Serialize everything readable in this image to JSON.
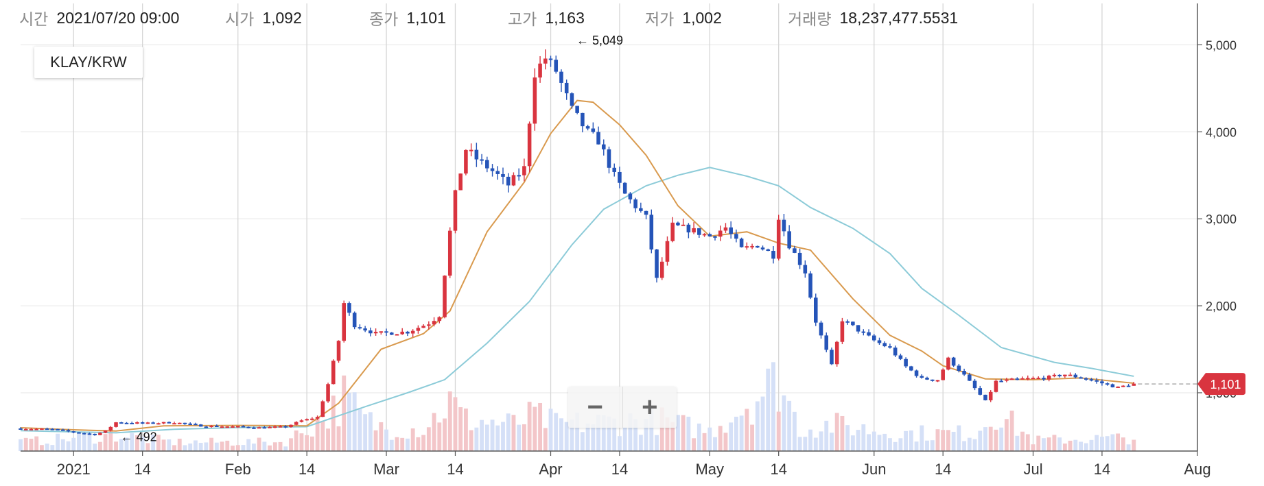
{
  "info": {
    "time_label": "시간",
    "time_value": "2021/07/20 09:00",
    "open_label": "시가",
    "open_value": "1,092",
    "close_label": "종가",
    "close_value": "1,101",
    "high_label": "고가",
    "high_value": "1,163",
    "low_label": "저가",
    "low_value": "1,002",
    "volume_label": "거래량",
    "volume_value": "18,237,477.5531"
  },
  "symbol": "KLAY/KRW",
  "zoom": {
    "out_label": "−",
    "in_label": "+"
  },
  "colors": {
    "up": "#d9343f",
    "down": "#2554b8",
    "ma_short": "#d99a4e",
    "ma_long": "#8ccbd8",
    "up_volume": "#f3c6c9",
    "down_volume": "#d5e0f7",
    "grid": "#e6e6e6"
  },
  "chart_data": {
    "type": "candlestick",
    "y_axis": {
      "ticks": [
        1000,
        2000,
        3000,
        4000,
        5000
      ],
      "tick_labels": [
        "1,000",
        "2,000",
        "3,000",
        "4,000",
        "5,000"
      ],
      "range": [
        330,
        5200
      ],
      "position": "right"
    },
    "x_axis": {
      "ticks": [
        {
          "date": "2021-01-01",
          "label": "2021"
        },
        {
          "date": "2021-01-14",
          "label": "14"
        },
        {
          "date": "2021-02-01",
          "label": "Feb"
        },
        {
          "date": "2021-02-14",
          "label": "14"
        },
        {
          "date": "2021-03-01",
          "label": "Mar"
        },
        {
          "date": "2021-03-14",
          "label": "14"
        },
        {
          "date": "2021-04-01",
          "label": "Apr"
        },
        {
          "date": "2021-04-14",
          "label": "14"
        },
        {
          "date": "2021-05-01",
          "label": "May"
        },
        {
          "date": "2021-05-14",
          "label": "14"
        },
        {
          "date": "2021-06-01",
          "label": "Jun"
        },
        {
          "date": "2021-06-14",
          "label": "14"
        },
        {
          "date": "2021-07-01",
          "label": "Jul"
        },
        {
          "date": "2021-07-14",
          "label": "14"
        },
        {
          "date": "2021-08-01",
          "label": "Aug"
        }
      ],
      "range": [
        "2020-12-22",
        "2021-08-01"
      ]
    },
    "close_anchors": [
      [
        "2020-12-22",
        590
      ],
      [
        "2020-12-28",
        580
      ],
      [
        "2021-01-02",
        540
      ],
      [
        "2021-01-05",
        520
      ],
      [
        "2021-01-07",
        560
      ],
      [
        "2021-01-09",
        660
      ],
      [
        "2021-01-15",
        650
      ],
      [
        "2021-01-20",
        660
      ],
      [
        "2021-01-25",
        620
      ],
      [
        "2021-02-01",
        610
      ],
      [
        "2021-02-05",
        600
      ],
      [
        "2021-02-10",
        610
      ],
      [
        "2021-02-13",
        680
      ],
      [
        "2021-02-16",
        720
      ],
      [
        "2021-02-18",
        1100
      ],
      [
        "2021-02-20",
        1600
      ],
      [
        "2021-02-21",
        2030
      ],
      [
        "2021-02-23",
        1780
      ],
      [
        "2021-02-27",
        1680
      ],
      [
        "2021-03-05",
        1700
      ],
      [
        "2021-03-09",
        1800
      ],
      [
        "2021-03-11",
        1890
      ],
      [
        "2021-03-13",
        2850
      ],
      [
        "2021-03-14",
        3280
      ],
      [
        "2021-03-16",
        3800
      ],
      [
        "2021-03-18",
        3690
      ],
      [
        "2021-03-21",
        3550
      ],
      [
        "2021-03-24",
        3390
      ],
      [
        "2021-03-27",
        3580
      ],
      [
        "2021-03-29",
        4680
      ],
      [
        "2021-03-31",
        4850
      ],
      [
        "2021-04-02",
        4700
      ],
      [
        "2021-04-05",
        4250
      ],
      [
        "2021-04-08",
        3990
      ],
      [
        "2021-04-10",
        3900
      ],
      [
        "2021-04-13",
        3490
      ],
      [
        "2021-04-15",
        3280
      ],
      [
        "2021-04-19",
        3010
      ],
      [
        "2021-04-21",
        2300
      ],
      [
        "2021-04-24",
        2920
      ],
      [
        "2021-04-27",
        2880
      ],
      [
        "2021-05-01",
        2800
      ],
      [
        "2021-05-04",
        2900
      ],
      [
        "2021-05-07",
        2650
      ],
      [
        "2021-05-10",
        2700
      ],
      [
        "2021-05-13",
        2580
      ],
      [
        "2021-05-14",
        3030
      ],
      [
        "2021-05-16",
        2700
      ],
      [
        "2021-05-19",
        2390
      ],
      [
        "2021-05-21",
        1820
      ],
      [
        "2021-05-24",
        1310
      ],
      [
        "2021-05-26",
        1840
      ],
      [
        "2021-05-28",
        1760
      ],
      [
        "2021-06-01",
        1600
      ],
      [
        "2021-06-04",
        1510
      ],
      [
        "2021-06-07",
        1300
      ],
      [
        "2021-06-10",
        1160
      ],
      [
        "2021-06-13",
        1150
      ],
      [
        "2021-06-15",
        1390
      ],
      [
        "2021-06-18",
        1200
      ],
      [
        "2021-06-22",
        900
      ],
      [
        "2021-06-24",
        1130
      ],
      [
        "2021-06-29",
        1160
      ],
      [
        "2021-07-03",
        1170
      ],
      [
        "2021-07-07",
        1210
      ],
      [
        "2021-07-11",
        1160
      ],
      [
        "2021-07-14",
        1110
      ],
      [
        "2021-07-17",
        1060
      ],
      [
        "2021-07-19",
        1092
      ],
      [
        "2021-07-20",
        1101
      ]
    ],
    "volume_anchors": [
      [
        "2020-12-22",
        0.1
      ],
      [
        "2021-01-09",
        0.18
      ],
      [
        "2021-01-20",
        0.1
      ],
      [
        "2021-02-10",
        0.1
      ],
      [
        "2021-02-18",
        0.4
      ],
      [
        "2021-02-21",
        0.6
      ],
      [
        "2021-02-25",
        0.35
      ],
      [
        "2021-03-01",
        0.25
      ],
      [
        "2021-03-08",
        0.25
      ],
      [
        "2021-03-13",
        0.55
      ],
      [
        "2021-03-16",
        0.35
      ],
      [
        "2021-03-25",
        0.3
      ],
      [
        "2021-03-29",
        0.4
      ],
      [
        "2021-04-02",
        0.3
      ],
      [
        "2021-04-10",
        0.32
      ],
      [
        "2021-04-21",
        0.35
      ],
      [
        "2021-05-01",
        0.22
      ],
      [
        "2021-05-14",
        0.8
      ],
      [
        "2021-05-18",
        0.25
      ],
      [
        "2021-05-24",
        0.3
      ],
      [
        "2021-06-05",
        0.2
      ],
      [
        "2021-06-20",
        0.2
      ],
      [
        "2021-06-24",
        0.45
      ],
      [
        "2021-07-01",
        0.12
      ],
      [
        "2021-07-20",
        0.15
      ]
    ],
    "moving_average_short": [
      [
        "2020-12-22",
        598
      ],
      [
        "2021-01-01",
        574
      ],
      [
        "2021-01-09",
        560
      ],
      [
        "2021-01-18",
        620
      ],
      [
        "2021-02-01",
        625
      ],
      [
        "2021-02-14",
        620
      ],
      [
        "2021-02-20",
        880
      ],
      [
        "2021-02-28",
        1500
      ],
      [
        "2021-03-08",
        1680
      ],
      [
        "2021-03-13",
        1940
      ],
      [
        "2021-03-20",
        2850
      ],
      [
        "2021-03-27",
        3420
      ],
      [
        "2021-04-01",
        3980
      ],
      [
        "2021-04-06",
        4360
      ],
      [
        "2021-04-09",
        4340
      ],
      [
        "2021-04-14",
        4080
      ],
      [
        "2021-04-19",
        3730
      ],
      [
        "2021-04-25",
        3150
      ],
      [
        "2021-05-01",
        2800
      ],
      [
        "2021-05-08",
        2850
      ],
      [
        "2021-05-14",
        2720
      ],
      [
        "2021-05-20",
        2640
      ],
      [
        "2021-05-28",
        2080
      ],
      [
        "2021-06-04",
        1660
      ],
      [
        "2021-06-10",
        1480
      ],
      [
        "2021-06-14",
        1310
      ],
      [
        "2021-06-22",
        1160
      ],
      [
        "2021-07-01",
        1150
      ],
      [
        "2021-07-10",
        1170
      ],
      [
        "2021-07-20",
        1110
      ]
    ],
    "moving_average_long": [
      [
        "2020-12-22",
        565
      ],
      [
        "2021-01-09",
        540
      ],
      [
        "2021-01-20",
        580
      ],
      [
        "2021-02-01",
        600
      ],
      [
        "2021-02-14",
        610
      ],
      [
        "2021-02-25",
        840
      ],
      [
        "2021-03-05",
        1000
      ],
      [
        "2021-03-12",
        1150
      ],
      [
        "2021-03-20",
        1570
      ],
      [
        "2021-03-28",
        2050
      ],
      [
        "2021-04-05",
        2700
      ],
      [
        "2021-04-11",
        3110
      ],
      [
        "2021-04-19",
        3380
      ],
      [
        "2021-04-25",
        3500
      ],
      [
        "2021-05-01",
        3590
      ],
      [
        "2021-05-08",
        3490
      ],
      [
        "2021-05-14",
        3380
      ],
      [
        "2021-05-20",
        3130
      ],
      [
        "2021-05-28",
        2890
      ],
      [
        "2021-06-04",
        2600
      ],
      [
        "2021-06-10",
        2200
      ],
      [
        "2021-06-17",
        1890
      ],
      [
        "2021-06-25",
        1520
      ],
      [
        "2021-07-05",
        1350
      ],
      [
        "2021-07-12",
        1280
      ],
      [
        "2021-07-20",
        1190
      ]
    ],
    "annotations": [
      {
        "date": "2021-04-03",
        "value": 5049,
        "label": "← 5,049"
      },
      {
        "date": "2021-01-07",
        "value": 492,
        "label": "← 492"
      }
    ],
    "current_price": {
      "value": 1101,
      "label": "1,101"
    }
  }
}
